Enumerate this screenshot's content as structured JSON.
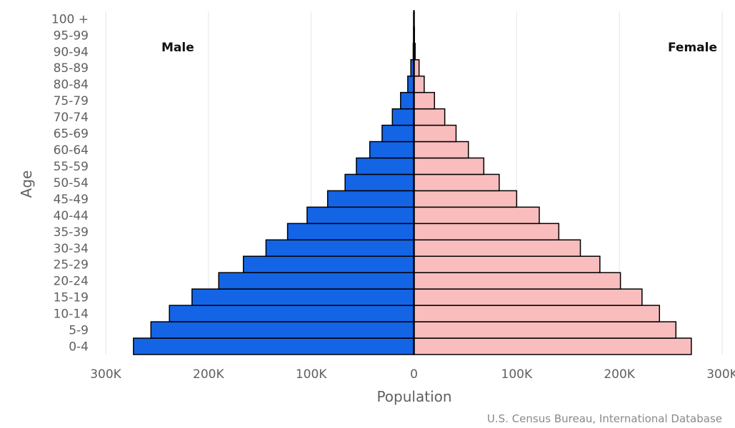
{
  "chart_data": {
    "type": "bar",
    "orientation": "horizontal-population-pyramid",
    "categories": [
      "0-4",
      "5-9",
      "10-14",
      "15-19",
      "20-24",
      "25-29",
      "30-34",
      "35-39",
      "40-44",
      "45-49",
      "50-54",
      "55-59",
      "60-64",
      "65-69",
      "70-74",
      "75-79",
      "80-84",
      "85-89",
      "90-94",
      "95-99",
      "100 +"
    ],
    "series": [
      {
        "name": "Male",
        "color": "#1464e6",
        "values": [
          273000,
          256000,
          238000,
          216000,
          190000,
          166000,
          144000,
          123000,
          104000,
          84000,
          67000,
          56000,
          43000,
          31000,
          21000,
          13000,
          6000,
          3000,
          700,
          300,
          100
        ]
      },
      {
        "name": "Female",
        "color": "#f9bdbd",
        "values": [
          270000,
          255000,
          239000,
          222000,
          201000,
          181000,
          162000,
          141000,
          122000,
          100000,
          83000,
          68000,
          53000,
          41000,
          30000,
          20000,
          10000,
          5000,
          1200,
          500,
          200
        ]
      }
    ],
    "xlim": [
      -300000,
      300000
    ],
    "x_ticks": [
      -300000,
      -200000,
      -100000,
      0,
      100000,
      200000,
      300000
    ],
    "x_tick_labels": [
      "300K",
      "200K",
      "100K",
      "0",
      "100K",
      "200K",
      "300K"
    ],
    "xlabel": "Population",
    "ylabel": "Age",
    "grid": true,
    "credit": "U.S. Census Bureau, International Database"
  }
}
